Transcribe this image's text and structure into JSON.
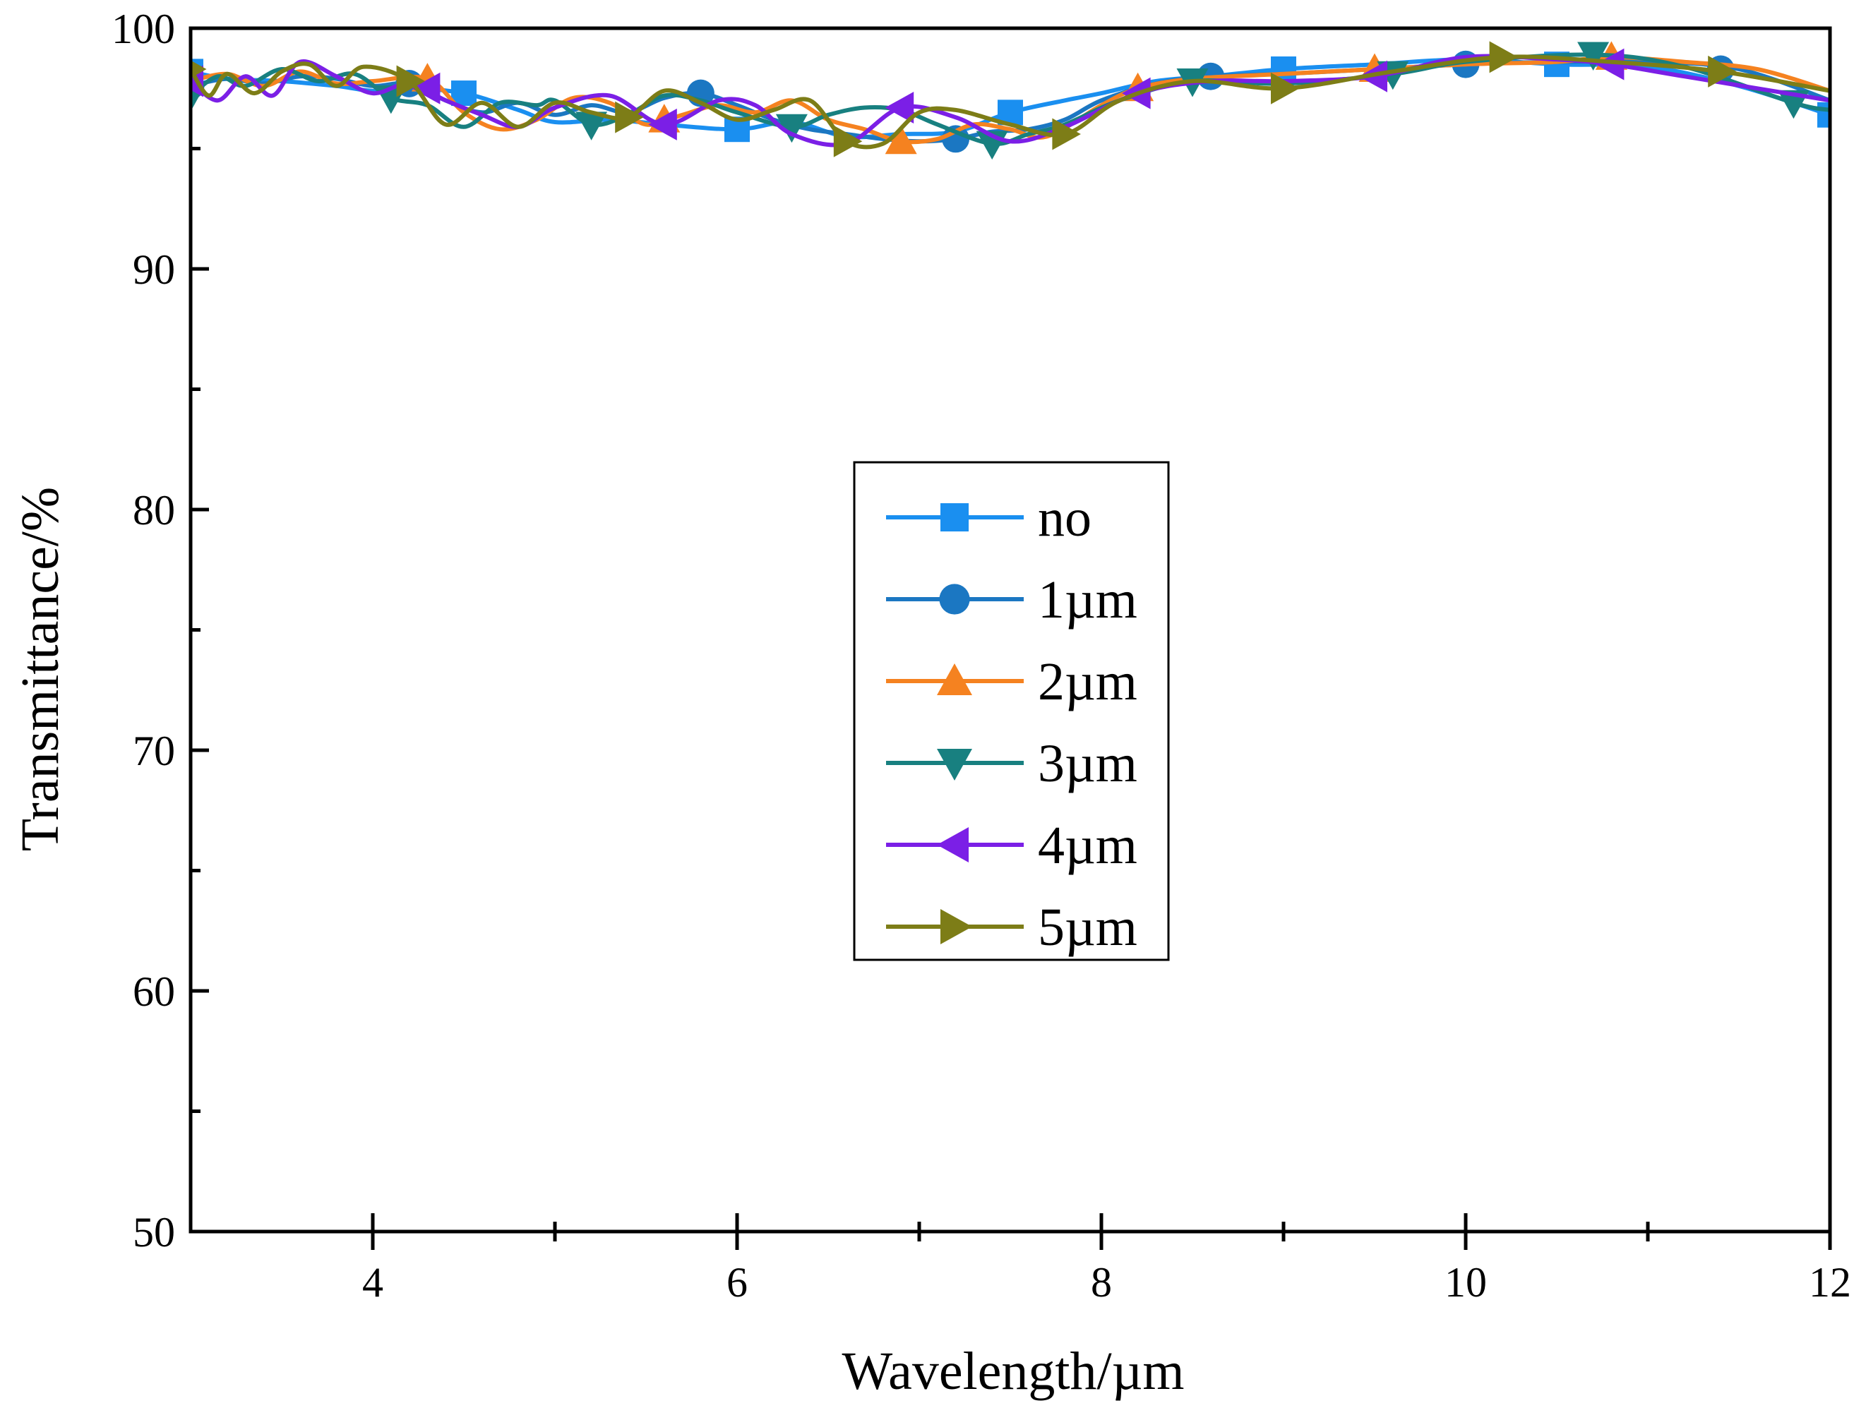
{
  "chart_data": {
    "type": "line",
    "title": "",
    "xlabel": "Wavelength/µm",
    "ylabel": "Transmittance/%",
    "xlim": [
      3,
      12
    ],
    "ylim": [
      50,
      100
    ],
    "x_major_ticks": [
      4,
      6,
      8,
      10,
      12
    ],
    "x_minor_ticks": [
      5,
      7,
      9,
      11
    ],
    "x_tick_labels": [
      "4",
      "6",
      "8",
      "10",
      "12"
    ],
    "y_major_ticks": [
      50,
      60,
      70,
      80,
      90,
      100
    ],
    "y_minor_ticks": [
      55,
      65,
      75,
      85,
      95
    ],
    "y_tick_labels": [
      "50",
      "60",
      "70",
      "80",
      "90",
      "100"
    ],
    "grid": false,
    "legend_position": "center",
    "series": [
      {
        "name": "no",
        "color": "#1a8ff0",
        "marker": "square",
        "x": [
          3.0,
          3.2,
          3.5,
          3.8,
          4.0,
          4.2,
          4.5,
          4.8,
          5.0,
          5.3,
          5.6,
          6.0,
          6.3,
          6.6,
          6.9,
          7.2,
          7.5,
          7.8,
          8.0,
          8.3,
          8.6,
          9.0,
          9.5,
          10.0,
          10.5,
          11.0,
          11.5,
          12.0
        ],
        "y": [
          98.2,
          97.9,
          97.8,
          97.6,
          97.4,
          97.5,
          97.3,
          96.6,
          96.1,
          96.2,
          96.0,
          95.8,
          96.1,
          95.5,
          95.6,
          95.7,
          96.5,
          97.0,
          97.3,
          97.8,
          98.0,
          98.3,
          98.5,
          98.7,
          98.5,
          98.4,
          97.6,
          96.4
        ],
        "marker_x": [
          3.0,
          4.5,
          6.0,
          7.5,
          9.0,
          10.5,
          12.0
        ],
        "marker_y": [
          98.2,
          97.3,
          95.8,
          96.5,
          98.3,
          98.5,
          96.4
        ]
      },
      {
        "name": "1µm",
        "color": "#1b77c2",
        "marker": "circle",
        "x": [
          3.0,
          3.2,
          3.4,
          3.6,
          3.8,
          4.0,
          4.2,
          4.4,
          4.6,
          4.8,
          5.0,
          5.2,
          5.4,
          5.6,
          5.8,
          6.0,
          6.2,
          6.4,
          6.6,
          6.8,
          7.0,
          7.2,
          7.4,
          7.6,
          7.8,
          8.0,
          8.3,
          8.6,
          9.0,
          9.5,
          10.0,
          10.5,
          11.0,
          11.5,
          12.0
        ],
        "y": [
          97.6,
          97.9,
          97.7,
          98.0,
          97.9,
          97.6,
          97.7,
          97.0,
          96.5,
          96.9,
          96.4,
          96.8,
          96.5,
          97.1,
          97.3,
          96.8,
          96.2,
          95.8,
          95.6,
          95.4,
          95.3,
          95.4,
          95.7,
          95.8,
          96.2,
          97.0,
          97.7,
          98.0,
          98.1,
          98.3,
          98.5,
          98.6,
          98.6,
          98.3,
          97.0
        ],
        "marker_x": [
          3.0,
          4.2,
          5.8,
          7.2,
          8.6,
          10.0,
          11.4
        ],
        "marker_y": [
          97.6,
          97.7,
          97.3,
          95.4,
          98.0,
          98.5,
          98.3
        ]
      },
      {
        "name": "2µm",
        "color": "#f58220",
        "marker": "triangle-up",
        "x": [
          3.0,
          3.2,
          3.4,
          3.6,
          3.8,
          4.0,
          4.3,
          4.5,
          4.7,
          4.9,
          5.1,
          5.3,
          5.5,
          5.7,
          5.9,
          6.1,
          6.3,
          6.5,
          6.7,
          6.9,
          7.1,
          7.3,
          7.5,
          7.7,
          8.0,
          8.2,
          8.5,
          9.0,
          9.5,
          10.0,
          10.5,
          10.8,
          11.2,
          11.6,
          12.0
        ],
        "y": [
          97.8,
          98.1,
          97.6,
          98.2,
          97.7,
          97.8,
          97.9,
          96.5,
          95.8,
          96.2,
          97.1,
          96.9,
          96.0,
          96.4,
          96.8,
          96.5,
          97.0,
          96.2,
          95.8,
          95.3,
          95.4,
          96.0,
          95.8,
          95.5,
          96.8,
          97.5,
          97.9,
          98.1,
          98.3,
          98.5,
          98.6,
          98.8,
          98.6,
          98.3,
          97.4
        ],
        "marker_x": [
          3.0,
          4.3,
          5.6,
          6.9,
          8.2,
          9.5,
          10.8
        ],
        "marker_y": [
          97.8,
          97.9,
          96.2,
          95.3,
          97.5,
          98.3,
          98.8
        ]
      },
      {
        "name": "3µm",
        "color": "#188080",
        "marker": "triangle-down",
        "x": [
          3.0,
          3.15,
          3.3,
          3.5,
          3.7,
          3.9,
          4.1,
          4.3,
          4.5,
          4.7,
          4.9,
          5.0,
          5.2,
          5.4,
          5.6,
          5.8,
          6.0,
          6.3,
          6.5,
          6.7,
          6.9,
          7.1,
          7.4,
          7.6,
          7.8,
          8.1,
          8.5,
          9.0,
          9.6,
          10.0,
          10.7,
          11.2,
          11.8,
          12.0
        ],
        "y": [
          97.2,
          98.0,
          97.6,
          98.3,
          97.8,
          98.1,
          97.1,
          96.8,
          95.9,
          96.9,
          96.8,
          97.0,
          96.0,
          96.4,
          97.2,
          97.0,
          96.5,
          95.9,
          96.4,
          96.7,
          96.6,
          96.0,
          95.2,
          95.6,
          96.0,
          97.0,
          97.8,
          97.7,
          98.1,
          98.6,
          98.9,
          98.4,
          96.9,
          96.6
        ],
        "marker_x": [
          3.0,
          4.1,
          5.2,
          6.3,
          7.4,
          8.5,
          9.6,
          10.7,
          11.8
        ],
        "marker_y": [
          97.2,
          97.1,
          96.0,
          95.9,
          95.2,
          97.8,
          98.1,
          98.9,
          96.9
        ]
      },
      {
        "name": "4µm",
        "color": "#7b1fe6",
        "marker": "triangle-left",
        "x": [
          3.0,
          3.15,
          3.3,
          3.45,
          3.6,
          3.8,
          4.0,
          4.2,
          4.4,
          4.6,
          4.8,
          5.0,
          5.3,
          5.6,
          5.9,
          6.1,
          6.3,
          6.6,
          6.9,
          7.2,
          7.5,
          7.8,
          8.2,
          8.6,
          9.0,
          9.5,
          10.0,
          10.5,
          10.8,
          11.2,
          12.0
        ],
        "y": [
          97.8,
          97.0,
          98.0,
          97.2,
          98.6,
          98.0,
          97.3,
          97.7,
          97.0,
          96.4,
          95.9,
          96.7,
          97.2,
          96.0,
          97.0,
          96.8,
          95.6,
          95.2,
          96.7,
          96.3,
          95.3,
          95.9,
          97.3,
          97.8,
          97.8,
          98.0,
          98.8,
          98.7,
          98.5,
          98.0,
          97.0
        ],
        "marker_x": [
          3.0,
          4.3,
          5.6,
          6.9,
          8.2,
          9.5,
          10.8
        ],
        "marker_y": [
          97.8,
          97.5,
          96.0,
          96.7,
          97.3,
          98.0,
          98.5
        ]
      },
      {
        "name": "5µm",
        "color": "#7d7d17",
        "marker": "triangle-right",
        "x": [
          3.0,
          3.1,
          3.2,
          3.35,
          3.5,
          3.65,
          3.8,
          3.95,
          4.2,
          4.4,
          4.6,
          4.8,
          5.0,
          5.2,
          5.4,
          5.6,
          5.8,
          6.0,
          6.2,
          6.4,
          6.6,
          6.8,
          7.0,
          7.2,
          7.5,
          7.8,
          8.1,
          8.5,
          9.0,
          9.6,
          10.2,
          10.8,
          11.4,
          12.0
        ],
        "y": [
          98.3,
          97.2,
          98.1,
          97.3,
          98.2,
          98.5,
          97.6,
          98.4,
          97.8,
          96.0,
          96.9,
          95.9,
          96.9,
          96.5,
          96.3,
          97.4,
          96.9,
          96.2,
          96.6,
          97.0,
          95.3,
          95.2,
          96.5,
          96.6,
          96.0,
          95.6,
          97.0,
          97.8,
          97.5,
          98.2,
          98.8,
          98.6,
          98.2,
          97.4
        ],
        "marker_x": [
          3.0,
          4.2,
          5.4,
          6.6,
          7.8,
          9.0,
          10.2,
          11.4
        ],
        "marker_y": [
          98.3,
          97.8,
          96.3,
          95.3,
          95.6,
          97.5,
          98.8,
          98.2
        ]
      }
    ]
  }
}
